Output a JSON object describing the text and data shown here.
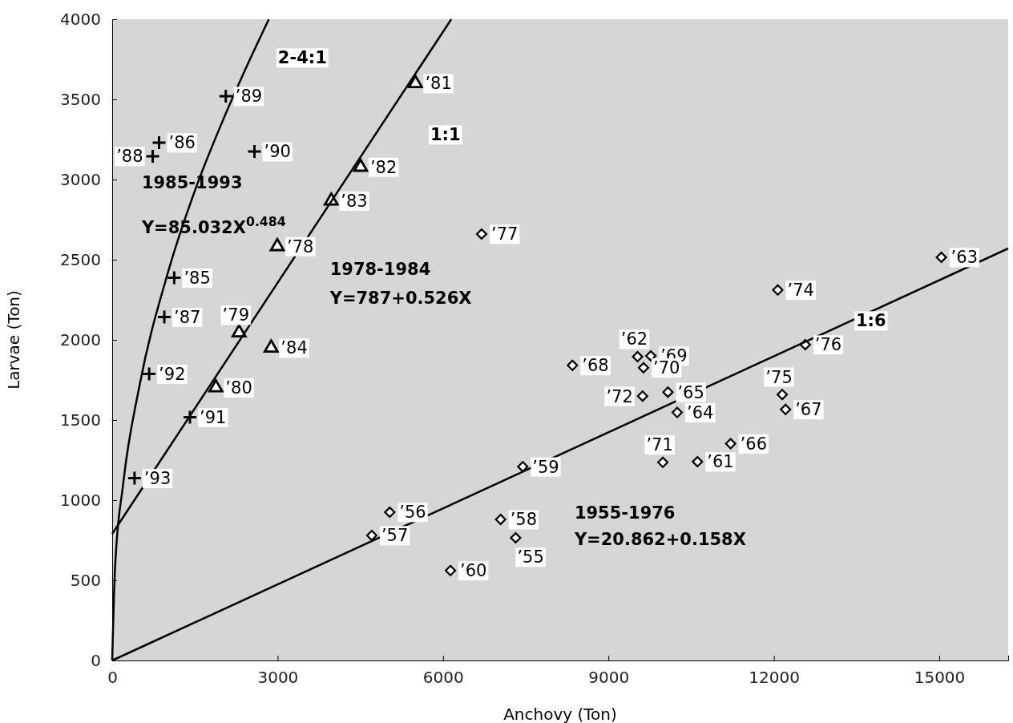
{
  "chart_data": {
    "type": "scatter",
    "xlabel": "Anchovy (Ton)",
    "ylabel": "Larvae (Ton)",
    "xlim": [
      0,
      16250
    ],
    "ylim": [
      0,
      4000
    ],
    "xticks": [
      0,
      3000,
      6000,
      9000,
      12000,
      15000
    ],
    "yticks": [
      0,
      500,
      1000,
      1500,
      2000,
      2500,
      3000,
      3500,
      4000
    ],
    "grid": false,
    "series": [
      {
        "marker": "cross",
        "color": "#000000",
        "x": [
          2060,
          850,
          735,
          2580,
          1125,
          945,
          670,
          1410,
          405
        ],
        "values": [
          3520,
          3230,
          3145,
          3175,
          2387,
          2142,
          1787,
          1517,
          1137
        ]
      },
      {
        "marker": "triangle",
        "color": "#000000",
        "x": [
          5500,
          4505,
          3973,
          2994,
          2301,
          2883,
          1880
        ],
        "values": [
          3600,
          3078,
          2867,
          2583,
          2045,
          1950,
          1702
        ]
      },
      {
        "marker": "diamond",
        "color": "#000000",
        "x": [
          5034,
          4708,
          7044,
          7317,
          6135,
          7446,
          8347,
          9528,
          9770,
          9636,
          9619,
          10079,
          10247,
          11216,
          10615,
          9987,
          12152,
          12212,
          12570,
          12071,
          15038,
          6700
        ],
        "values": [
          925,
          780,
          880,
          765,
          561,
          1209,
          1841,
          1895,
          1900,
          1826,
          1649,
          1674,
          1547,
          1352,
          1240,
          1236,
          1659,
          1566,
          1970,
          2311,
          2515,
          2660
        ]
      },
      {
        "type": "line",
        "name": "2-4:1",
        "color": "#000000",
        "line_style": "solid",
        "marker": "none",
        "x": [
          0,
          50,
          200,
          500,
          1000,
          1500,
          2000,
          2500,
          2840
        ],
        "values": [
          0,
          565,
          1104,
          1722,
          2407,
          2931,
          3363,
          3751,
          4000
        ]
      },
      {
        "type": "line",
        "name": "1:1",
        "color": "#000000",
        "line_style": "solid",
        "marker": "none",
        "x": [
          0,
          6150
        ],
        "values": [
          790,
          4000
        ]
      },
      {
        "type": "line",
        "name": "1:6",
        "color": "#000000",
        "line_style": "solid",
        "marker": "none",
        "x": [
          0,
          16250
        ],
        "values": [
          0,
          2570
        ]
      }
    ],
    "annotations": [
      "1985-1993",
      "Y=85.032X$^{0.484}$",
      "1978-1984",
      "Y=787+0.526X",
      "1955-1976",
      "Y=20.862+0.158X",
      {
        "text": "’89",
        "x": 2060,
        "y": 3520
      },
      {
        "text": "’86",
        "x": 850,
        "y": 3230
      },
      {
        "text": "’88",
        "x": 735,
        "y": 3145
      },
      {
        "text": "’90",
        "x": 2580,
        "y": 3175
      },
      {
        "text": "’85",
        "x": 1125,
        "y": 2387
      },
      {
        "text": "’87",
        "x": 945,
        "y": 2142
      },
      {
        "text": "’92",
        "x": 670,
        "y": 1787
      },
      {
        "text": "’91",
        "x": 1410,
        "y": 1517
      },
      {
        "text": "’93",
        "x": 405,
        "y": 1137
      },
      {
        "text": "’81",
        "x": 5500,
        "y": 3600
      },
      {
        "text": "’82",
        "x": 4505,
        "y": 3078
      },
      {
        "text": "’83",
        "x": 3973,
        "y": 2867
      },
      {
        "text": "’78",
        "x": 2994,
        "y": 2583
      },
      {
        "text": "’79",
        "x": 2301,
        "y": 2045
      },
      {
        "text": "’84",
        "x": 2883,
        "y": 1950
      },
      {
        "text": "’80",
        "x": 1880,
        "y": 1702
      },
      {
        "text": "’56",
        "x": 5034,
        "y": 925
      },
      {
        "text": "’57",
        "x": 4708,
        "y": 780
      },
      {
        "text": "’58",
        "x": 7044,
        "y": 880
      },
      {
        "text": "’55",
        "x": 7317,
        "y": 765
      },
      {
        "text": "’60",
        "x": 6135,
        "y": 561
      },
      {
        "text": "’59",
        "x": 7446,
        "y": 1209
      },
      {
        "text": "’68",
        "x": 8347,
        "y": 1841
      },
      {
        "text": "’62",
        "x": 9528,
        "y": 1895
      },
      {
        "text": "’69",
        "x": 9770,
        "y": 1900
      },
      {
        "text": "’70",
        "x": 9636,
        "y": 1826
      },
      {
        "text": "’72",
        "x": 9619,
        "y": 1649
      },
      {
        "text": "’65",
        "x": 10079,
        "y": 1674
      },
      {
        "text": "’64",
        "x": 10247,
        "y": 1547
      },
      {
        "text": "’66",
        "x": 11216,
        "y": 1352
      },
      {
        "text": "’61",
        "x": 10615,
        "y": 1240
      },
      {
        "text": "’71",
        "x": 9987,
        "y": 1236
      },
      {
        "text": "’75",
        "x": 12152,
        "y": 1659
      },
      {
        "text": "’67",
        "x": 12212,
        "y": 1566
      },
      {
        "text": "’76",
        "x": 12570,
        "y": 1970
      },
      {
        "text": "’74",
        "x": 12071,
        "y": 2311
      },
      {
        "text": "’63",
        "x": 15038,
        "y": 2515
      },
      {
        "text": "’77",
        "x": 6700,
        "y": 2660
      }
    ]
  }
}
